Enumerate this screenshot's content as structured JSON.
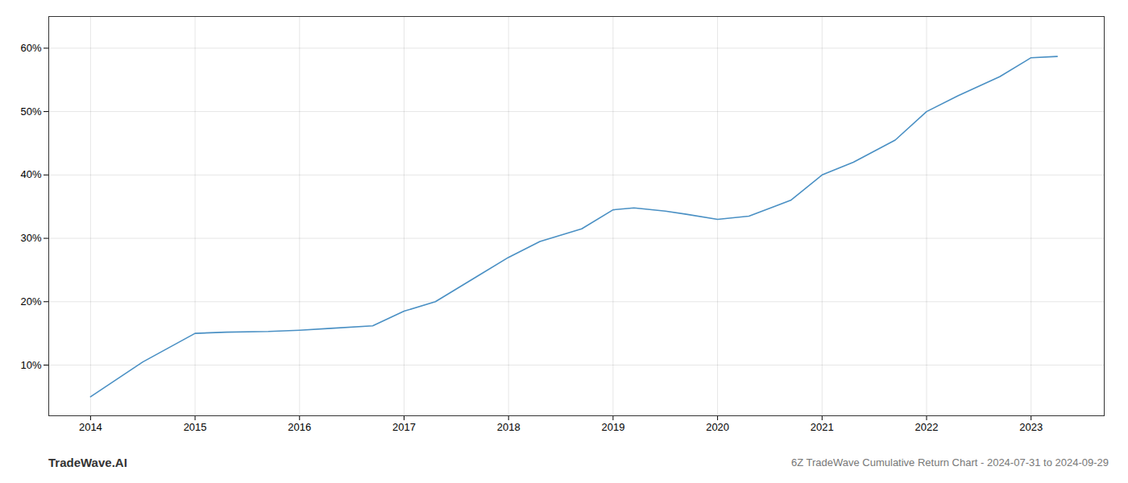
{
  "chart_data": {
    "type": "line",
    "title": "6Z TradeWave Cumulative Return Chart - 2024-07-31 to 2024-09-29",
    "annotations": [
      "TradeWave.AI"
    ],
    "x": [
      2014,
      2014.5,
      2015,
      2015.3,
      2015.7,
      2016,
      2016.3,
      2016.7,
      2017,
      2017.3,
      2017.7,
      2018,
      2018.3,
      2018.7,
      2019,
      2019.2,
      2019.5,
      2019.7,
      2020,
      2020.3,
      2020.7,
      2021,
      2021.3,
      2021.7,
      2022,
      2022.3,
      2022.7,
      2023,
      2023.25
    ],
    "values": [
      5.0,
      10.5,
      15.0,
      15.2,
      15.3,
      15.5,
      15.8,
      16.2,
      18.5,
      20.0,
      24.0,
      27.0,
      29.5,
      31.5,
      34.5,
      34.8,
      34.3,
      33.8,
      33.0,
      33.5,
      36.0,
      40.0,
      42.0,
      45.5,
      50.0,
      52.5,
      55.5,
      58.5,
      58.7
    ],
    "color": "#4a90c4",
    "xlim": [
      2013.6,
      2023.7
    ],
    "xticks": [
      2014,
      2015,
      2016,
      2017,
      2018,
      2019,
      2020,
      2021,
      2022,
      2023
    ],
    "ylim": [
      2,
      65
    ],
    "yticks": [
      {
        "value": 10,
        "label": "10%"
      },
      {
        "value": 20,
        "label": "20%"
      },
      {
        "value": 30,
        "label": "30%"
      },
      {
        "value": 40,
        "label": "40%"
      },
      {
        "value": 50,
        "label": "50%"
      },
      {
        "value": 60,
        "label": "60%"
      }
    ],
    "grid": true
  }
}
